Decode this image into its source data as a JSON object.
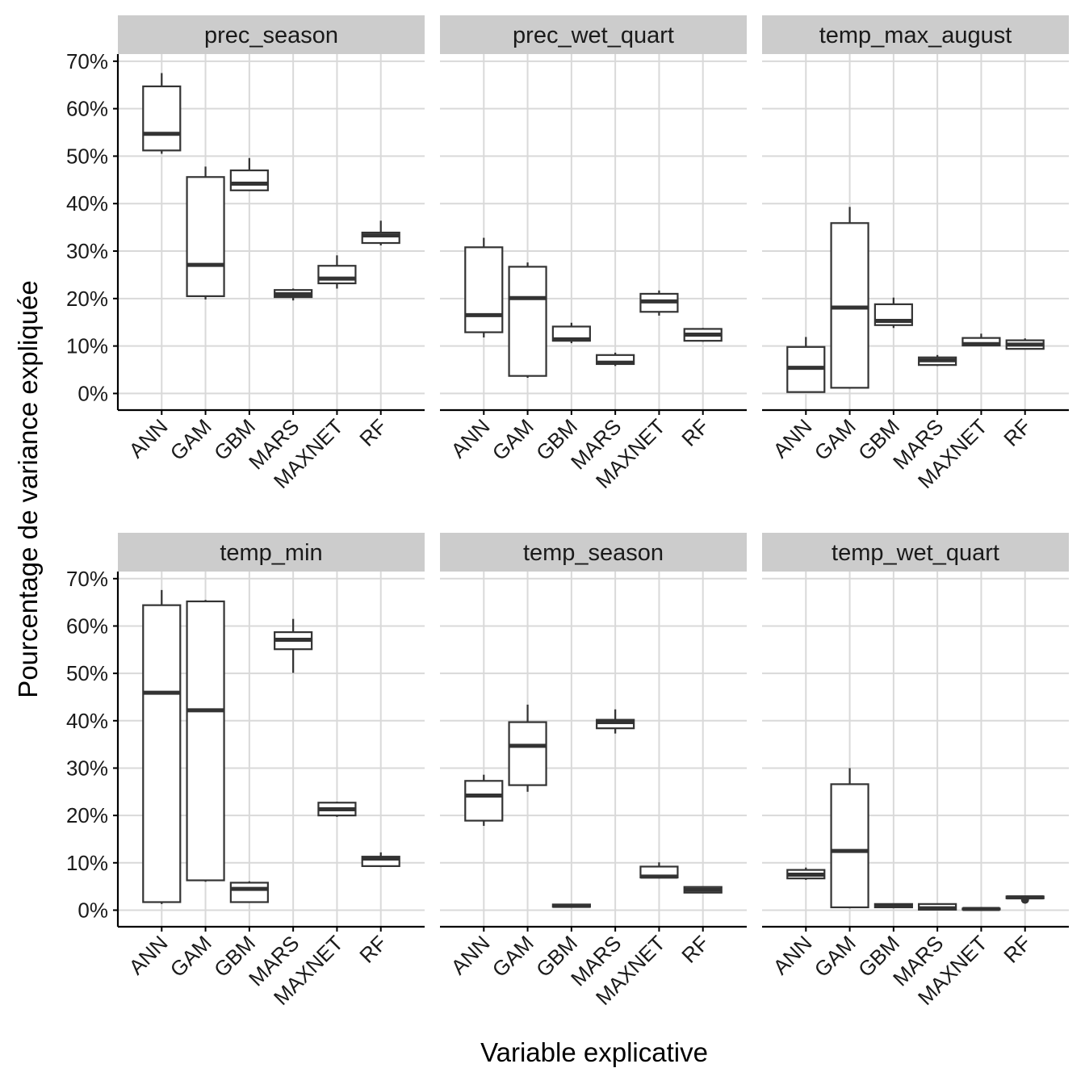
{
  "chart_data": {
    "type": "boxplot",
    "xlabel": "Variable explicative",
    "ylabel": "Pourcentage de variance expliquée",
    "ylim": [
      -3.5,
      71.5
    ],
    "yticks": [
      0,
      10,
      20,
      30,
      40,
      50,
      60,
      70
    ],
    "ytick_labels": [
      "0%",
      "10%",
      "20%",
      "30%",
      "40%",
      "50%",
      "60%",
      "70%"
    ],
    "categories": [
      "ANN",
      "GAM",
      "GBM",
      "MARS",
      "MAXNET",
      "RF"
    ],
    "grid": true,
    "colors": {
      "grid": "#d9d9d9",
      "box_outline": "#333333",
      "strip_bg": "#cccccc",
      "axis": "#000000"
    },
    "panels": [
      {
        "title": "prec_season",
        "boxes": [
          {
            "category": "ANN",
            "min": 50.5,
            "q1": 51.2,
            "median": 54.7,
            "q3": 64.7,
            "max": 67.5
          },
          {
            "category": "GAM",
            "min": 19.8,
            "q1": 20.5,
            "median": 27.1,
            "q3": 45.6,
            "max": 47.8
          },
          {
            "category": "GBM",
            "min": 42.7,
            "q1": 42.8,
            "median": 44.2,
            "q3": 47.0,
            "max": 49.6
          },
          {
            "category": "MARS",
            "min": 19.6,
            "q1": 20.3,
            "median": 20.9,
            "q3": 21.8,
            "max": 22.1
          },
          {
            "category": "MAXNET",
            "min": 22.1,
            "q1": 23.2,
            "median": 24.2,
            "q3": 26.9,
            "max": 29.1
          },
          {
            "category": "RF",
            "min": 31.2,
            "q1": 31.7,
            "median": 33.3,
            "q3": 33.9,
            "max": 36.4
          }
        ]
      },
      {
        "title": "prec_wet_quart",
        "boxes": [
          {
            "category": "ANN",
            "min": 11.8,
            "q1": 12.9,
            "median": 16.5,
            "q3": 30.8,
            "max": 32.8
          },
          {
            "category": "GAM",
            "min": 3.3,
            "q1": 3.7,
            "median": 20.1,
            "q3": 26.7,
            "max": 27.6
          },
          {
            "category": "GBM",
            "min": 10.6,
            "q1": 11.1,
            "median": 11.4,
            "q3": 14.1,
            "max": 14.9
          },
          {
            "category": "MARS",
            "min": 5.8,
            "q1": 6.2,
            "median": 6.5,
            "q3": 8.1,
            "max": 8.6
          },
          {
            "category": "MAXNET",
            "min": 16.4,
            "q1": 17.2,
            "median": 19.4,
            "q3": 21.0,
            "max": 21.7
          },
          {
            "category": "RF",
            "min": 10.9,
            "q1": 11.1,
            "median": 12.4,
            "q3": 13.6,
            "max": 13.8
          }
        ]
      },
      {
        "title": "temp_max_august",
        "boxes": [
          {
            "category": "ANN",
            "min": 0.2,
            "q1": 0.3,
            "median": 5.4,
            "q3": 9.8,
            "max": 11.9
          },
          {
            "category": "GAM",
            "min": 1.0,
            "q1": 1.2,
            "median": 18.1,
            "q3": 35.9,
            "max": 39.3
          },
          {
            "category": "GBM",
            "min": 13.8,
            "q1": 14.4,
            "median": 15.3,
            "q3": 18.8,
            "max": 20.2
          },
          {
            "category": "MARS",
            "min": 5.8,
            "q1": 6.0,
            "median": 7.0,
            "q3": 7.6,
            "max": 8.1
          },
          {
            "category": "MAXNET",
            "min": 10.0,
            "q1": 10.1,
            "median": 10.4,
            "q3": 11.7,
            "max": 12.6
          },
          {
            "category": "RF",
            "min": 9.3,
            "q1": 9.4,
            "median": 10.3,
            "q3": 11.2,
            "max": 11.6
          }
        ]
      },
      {
        "title": "temp_min",
        "boxes": [
          {
            "category": "ANN",
            "min": 1.3,
            "q1": 1.7,
            "median": 45.9,
            "q3": 64.4,
            "max": 67.6
          },
          {
            "category": "GAM",
            "min": 6.0,
            "q1": 6.3,
            "median": 42.2,
            "q3": 65.2,
            "max": 65.5
          },
          {
            "category": "GBM",
            "min": 1.6,
            "q1": 1.7,
            "median": 4.5,
            "q3": 5.8,
            "max": 6.1
          },
          {
            "category": "MARS",
            "min": 50.1,
            "q1": 55.1,
            "median": 57.1,
            "q3": 58.7,
            "max": 61.5
          },
          {
            "category": "MAXNET",
            "min": 19.7,
            "q1": 20.0,
            "median": 21.3,
            "q3": 22.7,
            "max": 22.9
          },
          {
            "category": "RF",
            "min": 9.1,
            "q1": 9.3,
            "median": 10.9,
            "q3": 11.3,
            "max": 12.2
          }
        ]
      },
      {
        "title": "temp_season",
        "boxes": [
          {
            "category": "ANN",
            "min": 17.8,
            "q1": 18.9,
            "median": 24.2,
            "q3": 27.3,
            "max": 28.6
          },
          {
            "category": "GAM",
            "min": 25.0,
            "q1": 26.4,
            "median": 34.7,
            "q3": 39.7,
            "max": 43.4
          },
          {
            "category": "GBM",
            "min": 0.6,
            "q1": 0.7,
            "median": 0.9,
            "q3": 1.2,
            "max": 1.3
          },
          {
            "category": "MARS",
            "min": 37.3,
            "q1": 38.4,
            "median": 39.7,
            "q3": 40.2,
            "max": 42.4
          },
          {
            "category": "MAXNET",
            "min": 6.7,
            "q1": 6.9,
            "median": 7.1,
            "q3": 9.2,
            "max": 10.1
          },
          {
            "category": "RF",
            "min": 3.6,
            "q1": 3.7,
            "median": 4.3,
            "q3": 4.9,
            "max": 5.0
          }
        ]
      },
      {
        "title": "temp_wet_quart",
        "boxes": [
          {
            "category": "ANN",
            "min": 6.4,
            "q1": 6.7,
            "median": 7.5,
            "q3": 8.5,
            "max": 9.0
          },
          {
            "category": "GAM",
            "min": 0.4,
            "q1": 0.6,
            "median": 12.5,
            "q3": 26.6,
            "max": 30.0
          },
          {
            "category": "GBM",
            "min": 0.4,
            "q1": 0.6,
            "median": 0.9,
            "q3": 1.3,
            "max": 1.4
          },
          {
            "category": "MARS",
            "min": 0.0,
            "q1": 0.1,
            "median": 0.4,
            "q3": 1.3,
            "max": 1.4
          },
          {
            "category": "MAXNET",
            "min": 0.1,
            "q1": 0.15,
            "median": 0.25,
            "q3": 0.35,
            "max": 0.4
          },
          {
            "category": "RF",
            "min": 2.3,
            "q1": 2.5,
            "median": 2.7,
            "q3": 2.9,
            "max": 3.0,
            "outliers": [
              2.2
            ]
          }
        ]
      }
    ]
  }
}
